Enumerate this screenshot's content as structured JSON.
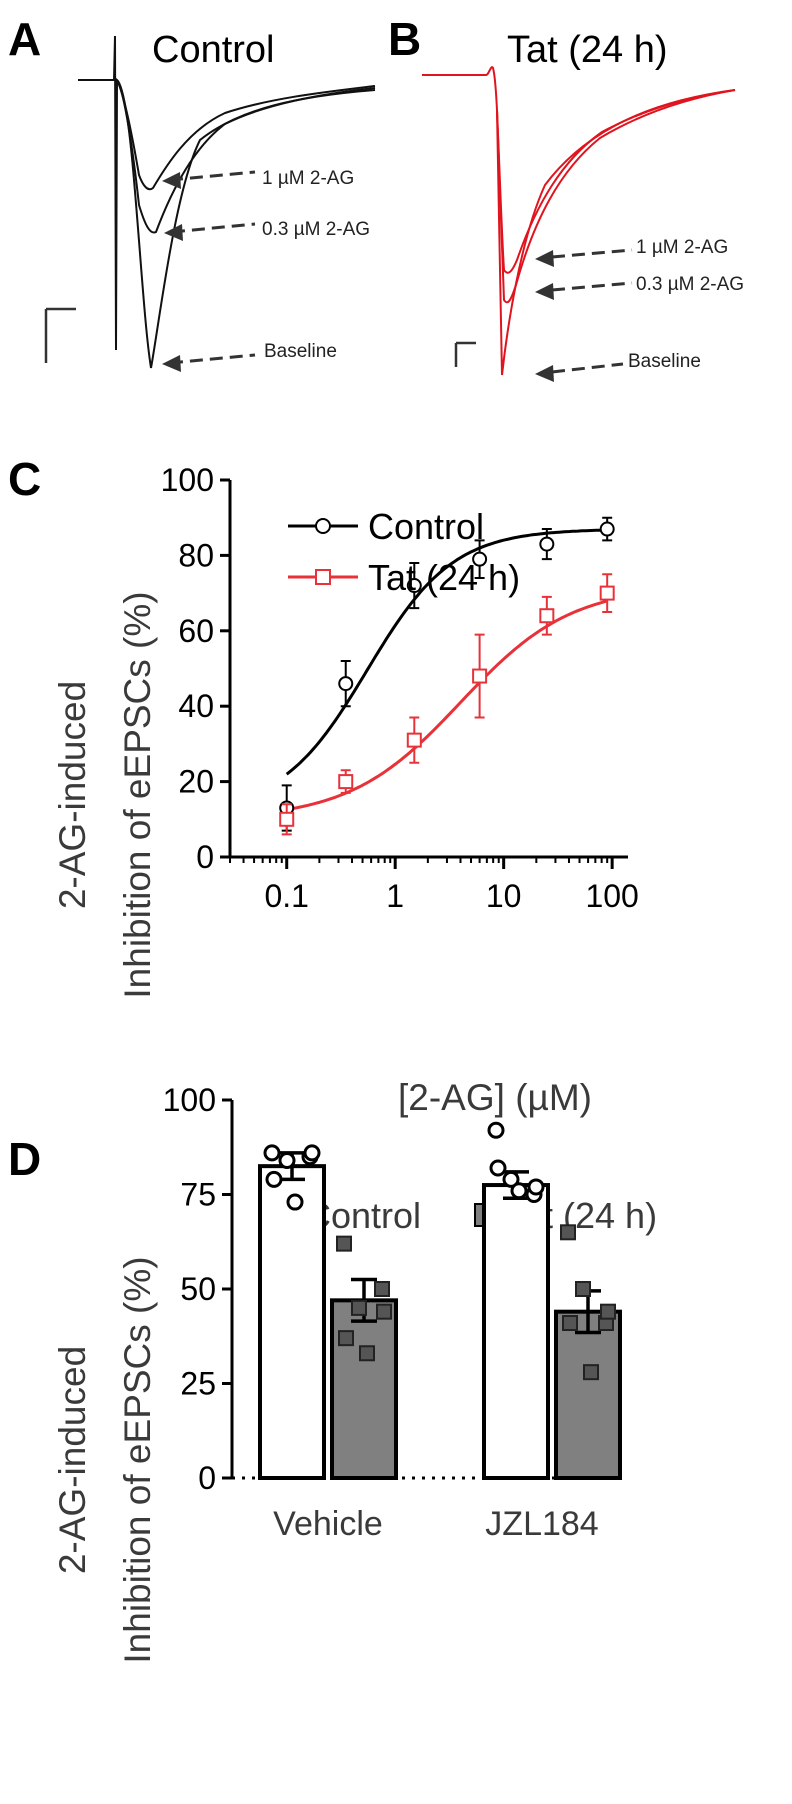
{
  "panels": {
    "a": {
      "letter": "A",
      "title": "Control",
      "color": "#000000",
      "labels": [
        "1 µM 2-AG",
        "0.3 µM 2-AG",
        "Baseline"
      ]
    },
    "b": {
      "letter": "B",
      "title": "Tat (24 h)",
      "color": "#e0141e",
      "labels": [
        "1 µM 2-AG",
        "0.3 µM 2-AG",
        "Baseline"
      ]
    },
    "c": {
      "letter": "C"
    },
    "d": {
      "letter": "D"
    }
  },
  "colors": {
    "control": "#000000",
    "tat": "#e8323a",
    "barTat": "#808080",
    "marker": "#555555"
  },
  "chart_data": [
    {
      "panel": "C",
      "type": "scatter",
      "ylabel_line1": "2-AG-induced",
      "ylabel_line2": "Inhibition of eEPSCs (%)",
      "xlabel": "[2-AG] (µM)",
      "x_scale": "log",
      "xlim": [
        0.03,
        140
      ],
      "ylim": [
        0,
        100
      ],
      "yticks": [
        "0",
        "20",
        "40",
        "60",
        "80",
        "100"
      ],
      "xticks": [
        "0.1",
        "1",
        "10",
        "100"
      ],
      "xtick_values": [
        0.1,
        1,
        10,
        100
      ],
      "ytick_values": [
        0,
        20,
        40,
        60,
        80,
        100
      ],
      "legend_position": "top-left",
      "series": [
        {
          "name": "Control",
          "color": "#000000",
          "marker": "circle",
          "x": [
            0.1,
            0.35,
            1.5,
            6,
            25,
            90
          ],
          "y": [
            13,
            46,
            72,
            79,
            83,
            87
          ],
          "err": [
            6,
            6,
            6,
            5,
            4,
            3
          ],
          "fit": {
            "bottom": 12,
            "top": 87,
            "ec50": 0.55,
            "hill": 1.1
          }
        },
        {
          "name": "Tat (24 h)",
          "color": "#e8323a",
          "marker": "square",
          "x": [
            0.1,
            0.35,
            1.5,
            6,
            25,
            90
          ],
          "y": [
            10,
            20,
            31,
            48,
            64,
            70
          ],
          "err": [
            4,
            3,
            6,
            11,
            5,
            5
          ],
          "fit": {
            "bottom": 10,
            "top": 72,
            "ec50": 4,
            "hill": 0.85
          }
        }
      ]
    },
    {
      "panel": "D",
      "type": "bar",
      "ylabel_line1": "2-AG-induced",
      "ylabel_line2": "Inhibition of eEPSCs (%)",
      "categories": [
        "Vehicle",
        "JZL184"
      ],
      "ylim": [
        0,
        100
      ],
      "yticks": [
        "0",
        "25",
        "50",
        "75",
        "100"
      ],
      "ytick_values": [
        0,
        25,
        50,
        75,
        100
      ],
      "legend_position": "top",
      "series": [
        {
          "name": "Control",
          "color": "#ffffff",
          "marker": "circle",
          "values": [
            82.5,
            77.5
          ],
          "err": [
            3.5,
            3.5
          ],
          "points": [
            [
              86,
              84,
              85,
              79,
              73,
              86
            ],
            [
              92,
              79,
              75,
              82,
              76,
              77
            ]
          ]
        },
        {
          "name": "Tat (24 h)",
          "color": "#808080",
          "marker": "square",
          "values": [
            47,
            44
          ],
          "err": [
            5.5,
            5.5
          ],
          "points": [
            [
              62,
              45,
              50,
              37,
              33,
              44
            ],
            [
              65,
              50,
              41,
              41,
              28,
              44
            ]
          ]
        }
      ]
    }
  ]
}
